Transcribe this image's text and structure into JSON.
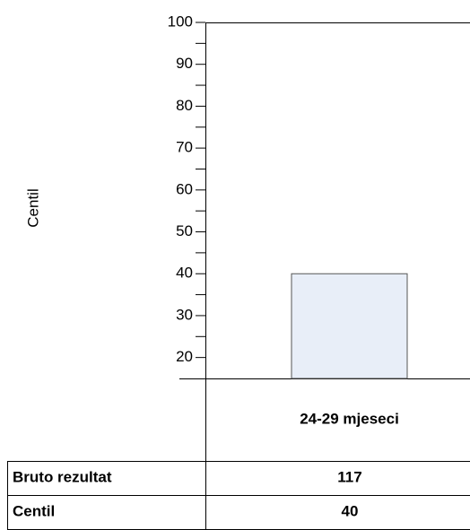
{
  "chart_data": {
    "type": "bar",
    "y_label": "Centil",
    "categories": [
      "24-29 mjeseci"
    ],
    "values": [
      40
    ],
    "color": "#e8eef8",
    "ylim": [
      15,
      100
    ],
    "yticks": [
      20,
      30,
      40,
      50,
      60,
      70,
      80,
      90,
      100
    ],
    "minor_yticks": [
      25,
      35,
      45,
      55,
      65,
      75,
      85,
      95
    ]
  },
  "table": {
    "rows": [
      [
        "Bruto rezultat",
        "117"
      ],
      [
        "Centil",
        "40"
      ]
    ]
  }
}
